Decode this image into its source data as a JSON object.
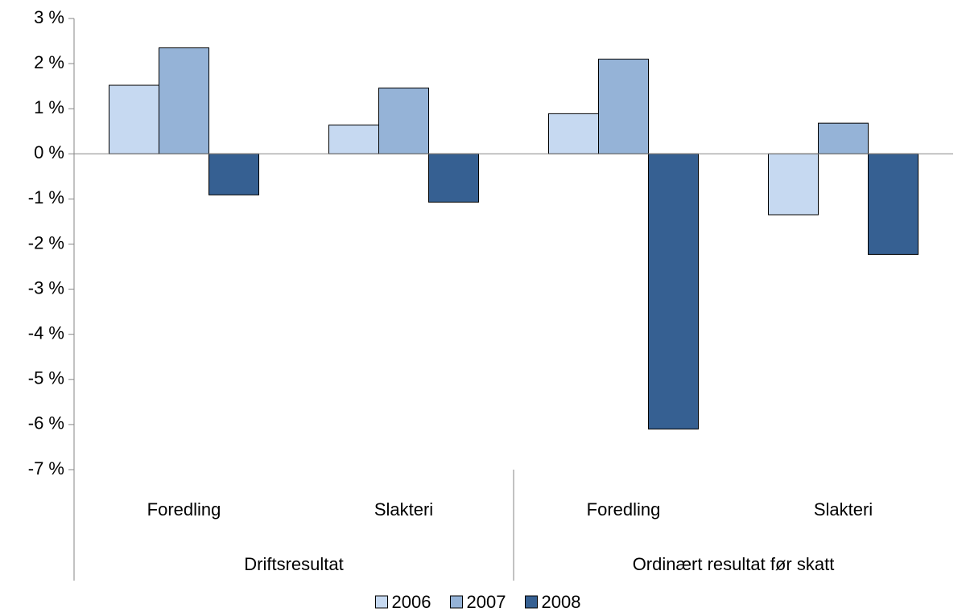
{
  "chart_data": {
    "type": "bar",
    "categories": [
      "Foredling",
      "Slakteri",
      "Foredling",
      "Slakteri"
    ],
    "groups": [
      "Driftsresultat",
      "Ordinært resultat før skatt"
    ],
    "series": [
      {
        "name": "2006",
        "color": "#c6d9f1",
        "values": [
          1.52,
          0.64,
          0.89,
          -1.35
        ]
      },
      {
        "name": "2007",
        "color": "#95b3d7",
        "values": [
          2.35,
          1.46,
          2.1,
          0.68
        ]
      },
      {
        "name": "2008",
        "color": "#366092",
        "values": [
          -0.91,
          -1.07,
          -6.1,
          -2.23
        ]
      }
    ],
    "ylim": [
      -7,
      3
    ],
    "yticks": [
      {
        "value": -7,
        "label": "-7 %"
      },
      {
        "value": -6,
        "label": "-6 %"
      },
      {
        "value": -5,
        "label": "-5 %"
      },
      {
        "value": -4,
        "label": "-4 %"
      },
      {
        "value": -3,
        "label": "-3 %"
      },
      {
        "value": -2,
        "label": "-2 %"
      },
      {
        "value": -1,
        "label": "-1 %"
      },
      {
        "value": 0,
        "label": "0 %"
      },
      {
        "value": 1,
        "label": "1 %"
      },
      {
        "value": 2,
        "label": "2 %"
      },
      {
        "value": 3,
        "label": "3 %"
      }
    ],
    "grid": false,
    "legend": "bottom"
  }
}
